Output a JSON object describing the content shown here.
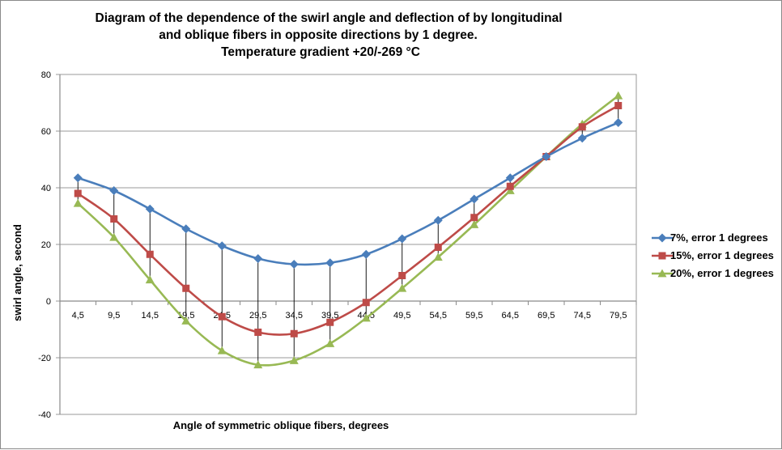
{
  "chart_data": {
    "type": "line",
    "title_lines": [
      "Diagram of the dependence of the swirl angle and deflection of by longitudinal",
      "and oblique fibers in opposite directions by 1 degree.",
      "Temperature gradient +20/-269 °C"
    ],
    "xlabel": "Angle of symmetric oblique fibers, degrees",
    "ylabel": "swirl angle, second",
    "categories": [
      "4,5",
      "9,5",
      "14,5",
      "19,5",
      "24,5",
      "29,5",
      "34,5",
      "39,5",
      "44,5",
      "49,5",
      "54,5",
      "59,5",
      "64,5",
      "69,5",
      "74,5",
      "79,5"
    ],
    "ylim": [
      -40,
      80
    ],
    "yticks": [
      -40,
      -20,
      0,
      20,
      40,
      60,
      80
    ],
    "ytick_labels": [
      "-40",
      "-20",
      "0",
      "20",
      "40",
      "60",
      "80"
    ],
    "grid": true,
    "legend_position": "right",
    "series": [
      {
        "name": "7%, error 1 degrees",
        "color": "#4a7ebb",
        "marker": "diamond",
        "values": [
          43.5,
          39,
          32.5,
          25.5,
          19.5,
          15,
          13,
          13.5,
          16.5,
          22,
          28.5,
          36,
          43.5,
          51,
          57.5,
          63
        ]
      },
      {
        "name": "15%, error 1 degrees",
        "color": "#be4b48",
        "marker": "square",
        "values": [
          38,
          29,
          16.5,
          4.5,
          -5.5,
          -11,
          -11.5,
          -7.5,
          -0.5,
          9,
          19,
          29.5,
          40.5,
          51,
          61.5,
          69
        ]
      },
      {
        "name": "20%, error 1 degrees",
        "color": "#98b954",
        "marker": "triangle",
        "values": [
          34.5,
          22.5,
          7.5,
          -7,
          -17.5,
          -22.5,
          -21,
          -15,
          -6,
          4.5,
          15.5,
          27,
          39,
          51,
          62.5,
          72.5
        ]
      }
    ],
    "drop_lines_between": [
      "7%, error 1 degrees",
      "20%, error 1 degrees"
    ]
  }
}
